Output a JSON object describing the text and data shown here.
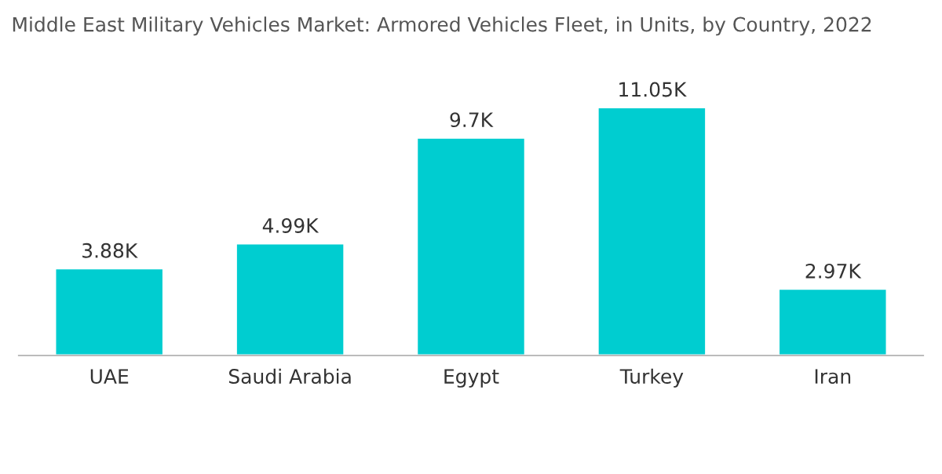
{
  "chart_data": {
    "type": "bar",
    "title": "Middle East Military Vehicles Market: Armored Vehicles Fleet, in Units, by Country, 2022",
    "categories": [
      "UAE",
      "Saudi Arabia",
      "Egypt",
      "Turkey",
      "Iran"
    ],
    "values": [
      3880,
      4990,
      9700,
      11050,
      2970
    ],
    "value_labels": [
      "3.88K",
      "4.99K",
      "9.7K",
      "11.05K",
      "2.97K"
    ],
    "color": "#00cdd0",
    "grid": false,
    "legend": false
  }
}
